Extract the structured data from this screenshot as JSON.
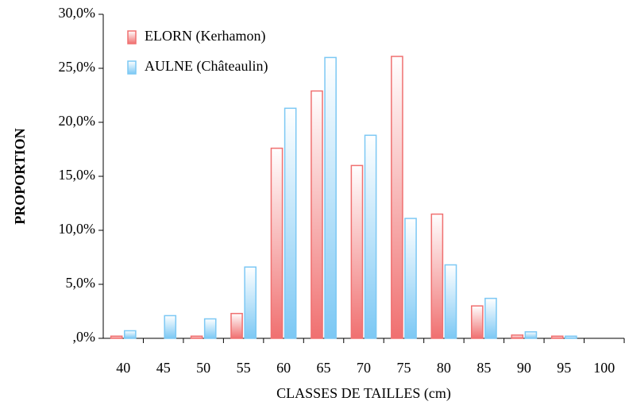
{
  "chart_data": {
    "type": "bar",
    "x_label": "CLASSES  DE TAILLES (cm)",
    "y_label": "PROPORTION",
    "categories": [
      "40",
      "45",
      "50",
      "55",
      "60",
      "65",
      "70",
      "75",
      "80",
      "85",
      "90",
      "95",
      "100"
    ],
    "series": [
      {
        "name": "ELORN (Kerhamon)",
        "color": "#f07070",
        "values": [
          0.2,
          0,
          0.2,
          2.3,
          17.6,
          22.9,
          16.0,
          26.1,
          11.5,
          3.0,
          0.3,
          0.2,
          0
        ]
      },
      {
        "name": "AULNE (Châteaulin)",
        "color": "#7cc8f4",
        "values": [
          0.7,
          2.1,
          1.8,
          6.6,
          21.3,
          26.0,
          18.8,
          11.1,
          6.8,
          3.7,
          0.6,
          0.2,
          0
        ]
      }
    ],
    "ylim": [
      0,
      30
    ],
    "yticks": [
      {
        "value": 0,
        "label": ",0%"
      },
      {
        "value": 5,
        "label": "5,0%"
      },
      {
        "value": 10,
        "label": "10,0%"
      },
      {
        "value": 15,
        "label": "15,0%"
      },
      {
        "value": 20,
        "label": "20,0%"
      },
      {
        "value": 25,
        "label": "25,0%"
      },
      {
        "value": 30,
        "label": "30,0%"
      }
    ],
    "legend": "upper-left"
  }
}
